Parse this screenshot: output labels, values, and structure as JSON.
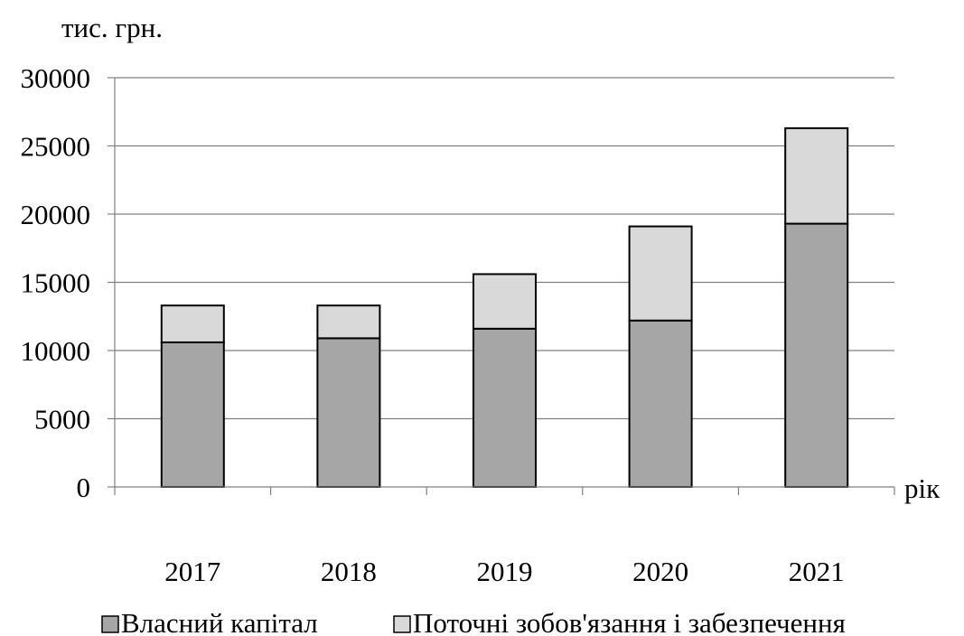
{
  "chart_data": {
    "type": "bar",
    "stacked": true,
    "ylabel": "тис. грн.",
    "xlabel": "рік",
    "categories": [
      "2017",
      "2018",
      "2019",
      "2020",
      "2021"
    ],
    "ylim": [
      0,
      30000
    ],
    "yticks": [
      0,
      5000,
      10000,
      15000,
      20000,
      25000,
      30000
    ],
    "grid": true,
    "legend_position": "bottom",
    "series": [
      {
        "name": "Власний капітал",
        "values": [
          10600,
          10900,
          11600,
          12200,
          19300
        ],
        "color": "#a6a6a6"
      },
      {
        "name": "Поточні зобов'язання і забезпечення",
        "values": [
          2700,
          2400,
          4000,
          6900,
          7000
        ],
        "color": "#d9d9d9"
      }
    ]
  }
}
